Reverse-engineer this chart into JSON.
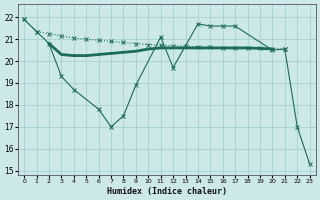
{
  "xlabel": "Humidex (Indice chaleur)",
  "bg_color": "#cce8e8",
  "grid_color": "#aad4d4",
  "line_color": "#1a6b5a",
  "xlim": [
    -0.5,
    23.5
  ],
  "ylim": [
    14.8,
    22.6
  ],
  "yticks": [
    15,
    16,
    17,
    18,
    19,
    20,
    21,
    22
  ],
  "xticks": [
    0,
    1,
    2,
    3,
    4,
    5,
    6,
    7,
    8,
    9,
    10,
    11,
    12,
    13,
    14,
    15,
    16,
    17,
    18,
    19,
    20,
    21,
    22,
    23
  ],
  "line1_x": [
    0,
    1,
    2,
    3,
    4,
    5,
    6,
    7,
    8,
    9,
    10,
    11,
    12,
    13,
    14,
    15,
    16,
    17,
    18,
    19,
    20,
    21
  ],
  "line1_y": [
    21.9,
    21.35,
    21.25,
    21.15,
    21.05,
    21.0,
    20.95,
    20.9,
    20.85,
    20.8,
    20.75,
    20.72,
    20.7,
    20.68,
    20.65,
    20.63,
    20.62,
    20.61,
    20.6,
    20.58,
    20.57,
    20.55
  ],
  "line2_x": [
    2,
    3,
    4,
    5,
    6,
    7,
    8,
    9,
    10,
    11,
    12,
    13,
    14,
    15,
    16,
    17,
    18,
    19,
    20
  ],
  "line2_y": [
    20.8,
    20.3,
    20.25,
    20.25,
    20.3,
    20.35,
    20.4,
    20.45,
    20.55,
    20.6,
    20.6,
    20.6,
    20.6,
    20.6,
    20.6,
    20.6,
    20.6,
    20.58,
    20.55
  ],
  "line3_x": [
    0,
    1,
    2,
    3,
    4,
    6,
    7,
    8,
    9,
    11,
    12,
    14,
    15,
    16,
    17,
    20,
    21,
    22,
    23
  ],
  "line3_y": [
    21.9,
    21.35,
    20.8,
    19.3,
    18.7,
    17.8,
    17.0,
    17.5,
    18.9,
    21.1,
    19.7,
    21.7,
    21.6,
    21.6,
    21.6,
    20.5,
    20.55,
    17.0,
    15.3
  ]
}
